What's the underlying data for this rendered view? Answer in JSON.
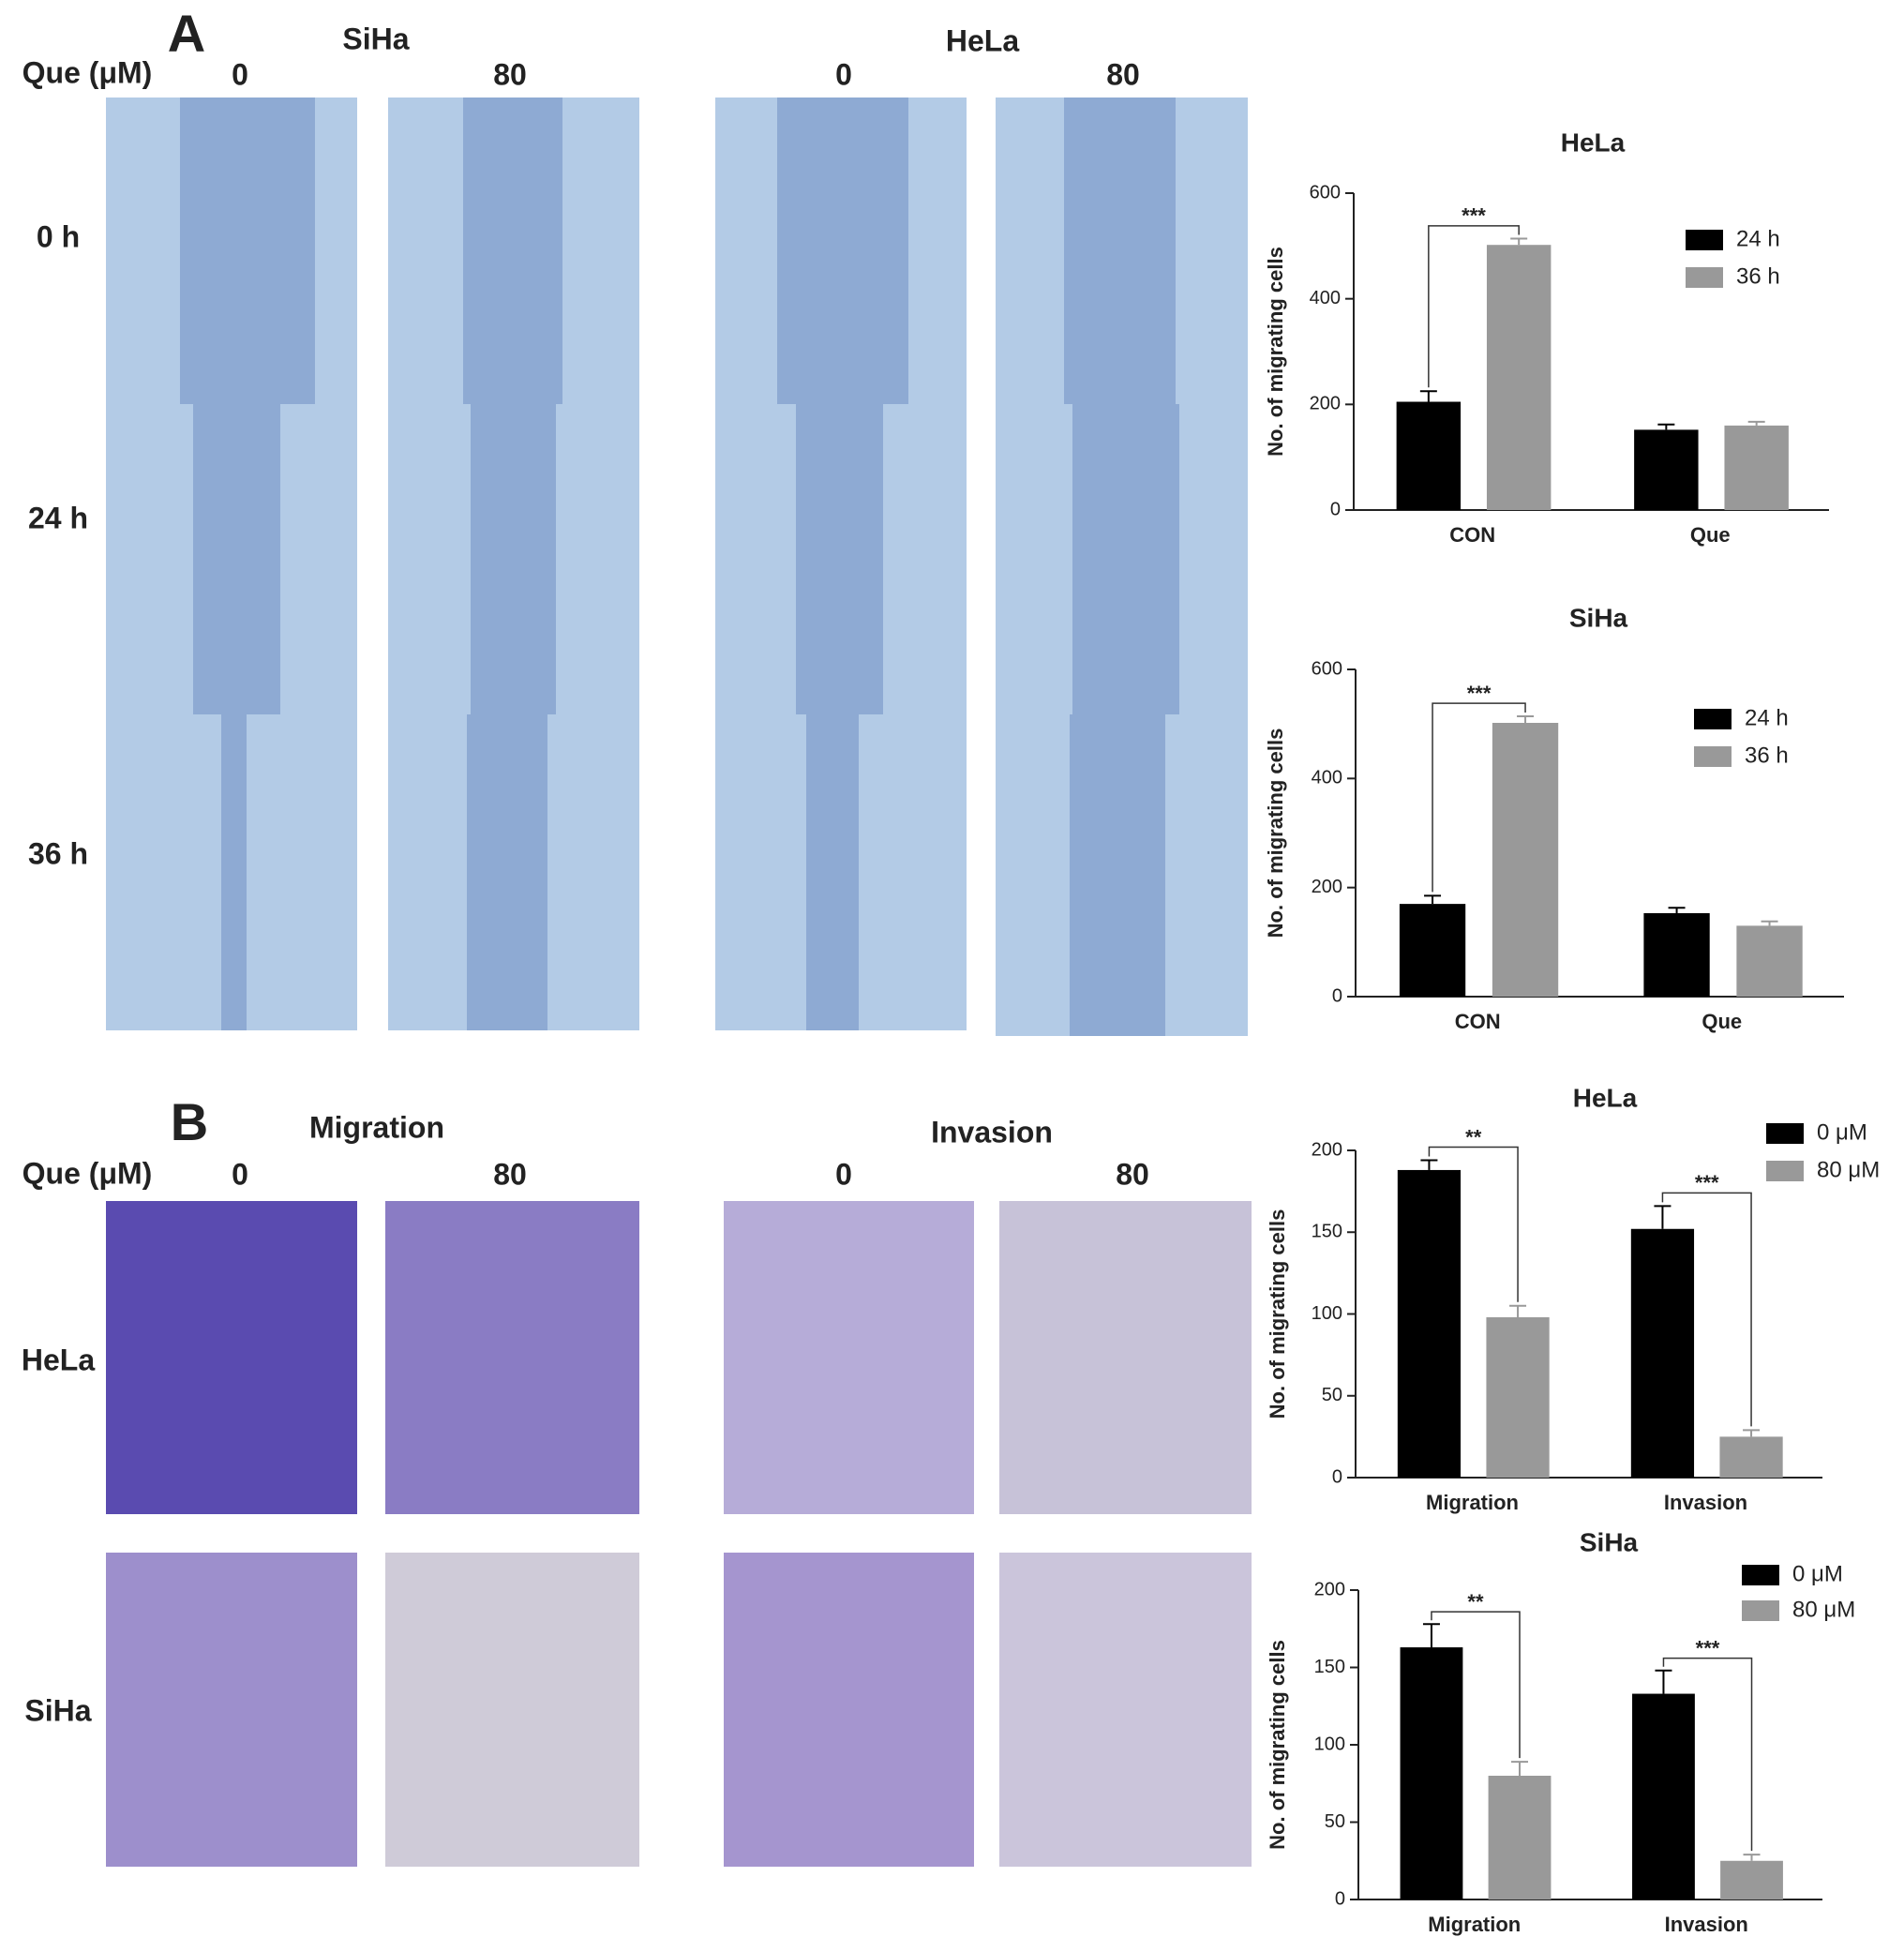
{
  "panel_a": {
    "label": "A",
    "que_label": "Que (μM)",
    "cell_lines": [
      "SiHa",
      "HeLa"
    ],
    "concentrations": [
      "0",
      "80",
      "0",
      "80"
    ],
    "times": [
      "0 h",
      "24 h",
      "36 h"
    ]
  },
  "panel_b": {
    "label": "B",
    "que_label": "Que (μM)",
    "assays": [
      "Migration",
      "Invasion"
    ],
    "concentrations": [
      "0",
      "80",
      "0",
      "80"
    ],
    "cell_lines": [
      "HeLa",
      "SiHa"
    ]
  },
  "chart_data": [
    {
      "type": "bar",
      "title": "HeLa",
      "y_label": "No. of migrating cells",
      "categories": [
        "CON",
        "Que"
      ],
      "series": [
        {
          "name": "24 h",
          "color": "#000000",
          "values": [
            205,
            152
          ],
          "errors": [
            20,
            10
          ]
        },
        {
          "name": "36 h",
          "color": "#999999",
          "values": [
            502,
            160
          ],
          "errors": [
            12,
            7
          ]
        }
      ],
      "annotations": [
        "***",
        null
      ],
      "ylim": [
        0,
        600
      ],
      "yticks": [
        0,
        200,
        400,
        600
      ]
    },
    {
      "type": "bar",
      "title": "SiHa",
      "y_label": "No. of migrating cells",
      "categories": [
        "CON",
        "Que"
      ],
      "series": [
        {
          "name": "24 h",
          "color": "#000000",
          "values": [
            170,
            153
          ],
          "errors": [
            15,
            10
          ]
        },
        {
          "name": "36 h",
          "color": "#999999",
          "values": [
            502,
            130
          ],
          "errors": [
            12,
            8
          ]
        }
      ],
      "annotations": [
        "***",
        null
      ],
      "ylim": [
        0,
        600
      ],
      "yticks": [
        0,
        200,
        400,
        600
      ]
    },
    {
      "type": "bar",
      "title": "HeLa",
      "y_label": "No. of migrating cells",
      "categories": [
        "Migration",
        "Invasion"
      ],
      "series": [
        {
          "name": "0 μM",
          "color": "#000000",
          "values": [
            188,
            152
          ],
          "errors": [
            6,
            14
          ]
        },
        {
          "name": "80 μM",
          "color": "#999999",
          "values": [
            98,
            25
          ],
          "errors": [
            7,
            4
          ]
        }
      ],
      "annotations": [
        "**",
        "***"
      ],
      "ylim": [
        0,
        200
      ],
      "yticks": [
        0,
        50,
        100,
        150,
        200
      ]
    },
    {
      "type": "bar",
      "title": "SiHa",
      "y_label": "No. of migrating cells",
      "categories": [
        "Migration",
        "Invasion"
      ],
      "series": [
        {
          "name": "0 μM",
          "color": "#000000",
          "values": [
            163,
            133
          ],
          "errors": [
            15,
            15
          ]
        },
        {
          "name": "80 μM",
          "color": "#999999",
          "values": [
            80,
            25
          ],
          "errors": [
            9,
            4
          ]
        }
      ],
      "annotations": [
        "**",
        "***"
      ],
      "ylim": [
        0,
        200
      ],
      "yticks": [
        0,
        50,
        100,
        150,
        200
      ]
    }
  ]
}
